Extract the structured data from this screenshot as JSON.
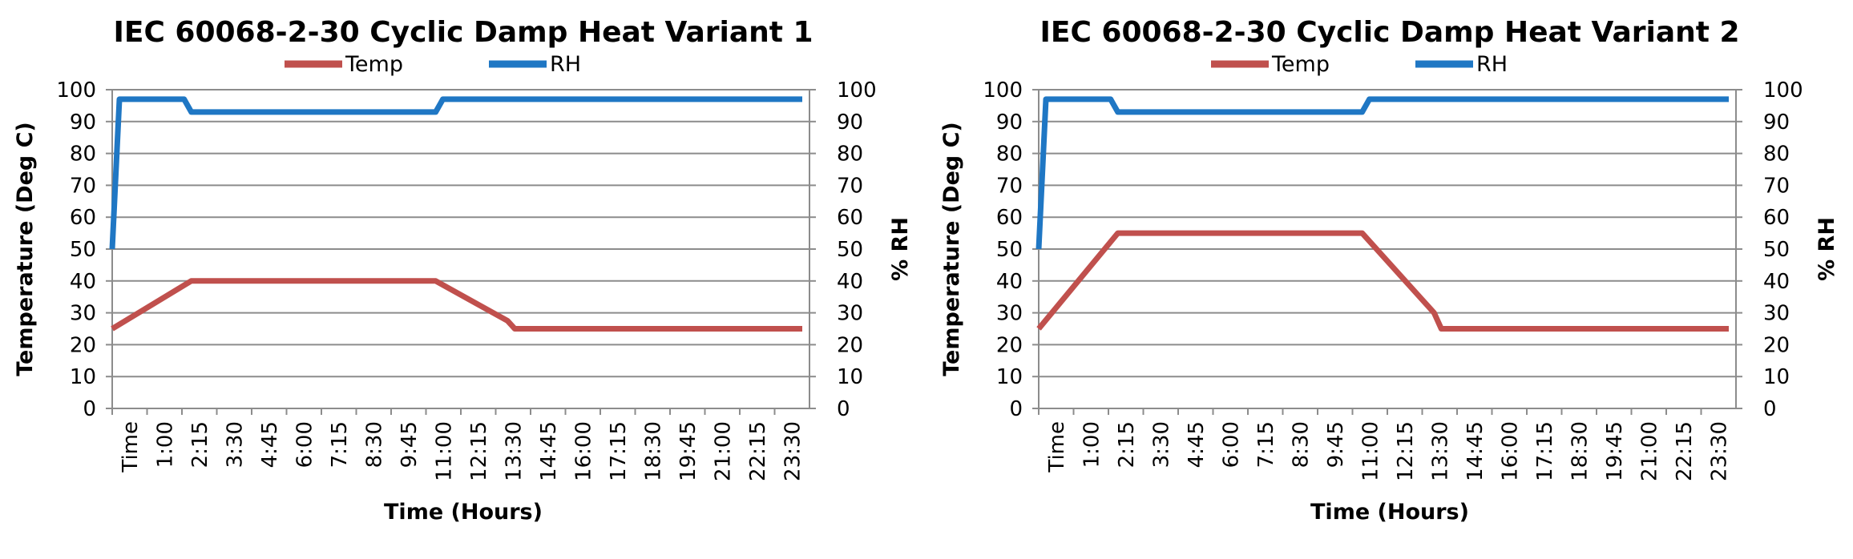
{
  "chart_data": [
    {
      "type": "line",
      "title": "IEC 60068-2-30 Cyclic Damp Heat Variant 1",
      "xlabel": "Time (Hours)",
      "ylabel": "Temperature (Deg C)",
      "y2label": "% RH",
      "ylim": [
        0,
        100
      ],
      "y2lim": [
        0,
        100
      ],
      "yticks": [
        "0",
        "10",
        "20",
        "30",
        "40",
        "50",
        "60",
        "70",
        "80",
        "90",
        "100"
      ],
      "y2ticks": [
        "0",
        "10",
        "20",
        "30",
        "40",
        "50",
        "60",
        "70",
        "80",
        "90",
        "100"
      ],
      "grid": true,
      "legend_position": "top",
      "x_tick_labels": [
        "Time",
        "1:00",
        "2:15",
        "3:30",
        "4:45",
        "6:00",
        "7:15",
        "8:30",
        "9:45",
        "11:00",
        "12:15",
        "13:30",
        "14:45",
        "16:00",
        "17:15",
        "18:30",
        "19:45",
        "21:00",
        "22:15",
        "23:30"
      ],
      "series": [
        {
          "name": "Temp",
          "axis": "left",
          "color": "#c0504d",
          "x": [
            "0:00",
            "2:45",
            "11:15",
            "13:45",
            "14:00",
            "24:00"
          ],
          "values": [
            25,
            40,
            40,
            27.5,
            25,
            25
          ]
        },
        {
          "name": "RH",
          "axis": "right",
          "color": "#1f77c4",
          "x": [
            "0:00",
            "0:15",
            "2:30",
            "2:45",
            "11:15",
            "11:30",
            "24:00"
          ],
          "values": [
            50,
            97,
            97,
            93,
            93,
            97,
            97
          ]
        }
      ]
    },
    {
      "type": "line",
      "title": "IEC 60068-2-30 Cyclic Damp Heat Variant 2",
      "xlabel": "Time (Hours)",
      "ylabel": "Temperature (Deg C)",
      "y2label": "% RH",
      "ylim": [
        0,
        100
      ],
      "y2lim": [
        0,
        100
      ],
      "yticks": [
        "0",
        "10",
        "20",
        "30",
        "40",
        "50",
        "60",
        "70",
        "80",
        "90",
        "100"
      ],
      "y2ticks": [
        "0",
        "10",
        "20",
        "30",
        "40",
        "50",
        "60",
        "70",
        "80",
        "90",
        "100"
      ],
      "grid": true,
      "legend_position": "top",
      "x_tick_labels": [
        "Time",
        "1:00",
        "2:15",
        "3:30",
        "4:45",
        "6:00",
        "7:15",
        "8:30",
        "9:45",
        "11:00",
        "12:15",
        "13:30",
        "14:45",
        "16:00",
        "17:15",
        "18:30",
        "19:45",
        "21:00",
        "22:15",
        "23:30"
      ],
      "series": [
        {
          "name": "Temp",
          "axis": "left",
          "color": "#c0504d",
          "x": [
            "0:00",
            "2:45",
            "11:15",
            "13:45",
            "14:00",
            "24:00"
          ],
          "values": [
            25,
            55,
            55,
            30,
            25,
            25
          ]
        },
        {
          "name": "RH",
          "axis": "right",
          "color": "#1f77c4",
          "x": [
            "0:00",
            "0:15",
            "2:30",
            "2:45",
            "11:15",
            "11:30",
            "24:00"
          ],
          "values": [
            50,
            97,
            97,
            93,
            93,
            97,
            97
          ]
        }
      ]
    }
  ]
}
